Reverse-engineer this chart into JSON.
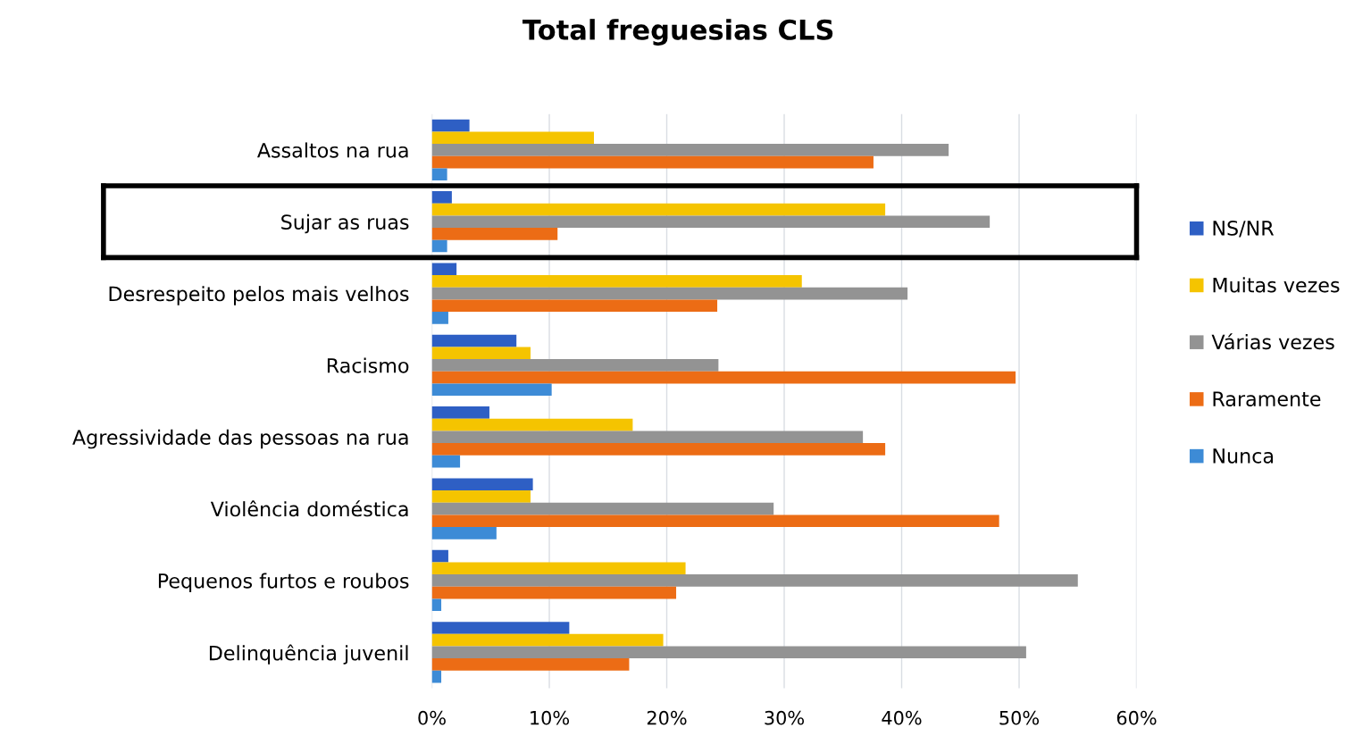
{
  "chart_data": {
    "type": "bar",
    "orientation": "horizontal",
    "title": "Total freguesias CLS",
    "categories": [
      "Assaltos na rua",
      "Sujar as ruas",
      "Desrespeito pelos mais velhos",
      "Racismo",
      "Agressividade das pessoas na rua",
      "Violência doméstica",
      "Pequenos furtos e roubos",
      "Delinquência juvenil"
    ],
    "series": [
      {
        "name": "NS/NR",
        "color": "#2e5fc4",
        "values": [
          3.2,
          1.7,
          2.1,
          7.2,
          4.9,
          8.6,
          1.4,
          11.7
        ]
      },
      {
        "name": "Muitas vezes",
        "color": "#f5c400",
        "values": [
          13.8,
          38.6,
          31.5,
          8.4,
          17.1,
          8.4,
          21.6,
          19.7
        ]
      },
      {
        "name": "Várias vezes",
        "color": "#939393",
        "values": [
          44.0,
          47.5,
          40.5,
          24.4,
          36.7,
          29.1,
          55.0,
          50.6
        ]
      },
      {
        "name": "Raramente",
        "color": "#ec6c15",
        "values": [
          37.6,
          10.7,
          24.3,
          49.7,
          38.6,
          48.3,
          20.8,
          16.8
        ]
      },
      {
        "name": "Nunca",
        "color": "#3d8bd6",
        "values": [
          1.3,
          1.3,
          1.4,
          10.2,
          2.4,
          5.5,
          0.8,
          0.8
        ]
      }
    ],
    "xlim": [
      0,
      60
    ],
    "xticks": [
      {
        "value": 0,
        "label": "0%"
      },
      {
        "value": 10,
        "label": "10%"
      },
      {
        "value": 20,
        "label": "20%"
      },
      {
        "value": 30,
        "label": "30%"
      },
      {
        "value": 40,
        "label": "40%"
      },
      {
        "value": 50,
        "label": "50%"
      },
      {
        "value": 60,
        "label": "60%"
      }
    ],
    "grid": "x",
    "legend": "right"
  }
}
